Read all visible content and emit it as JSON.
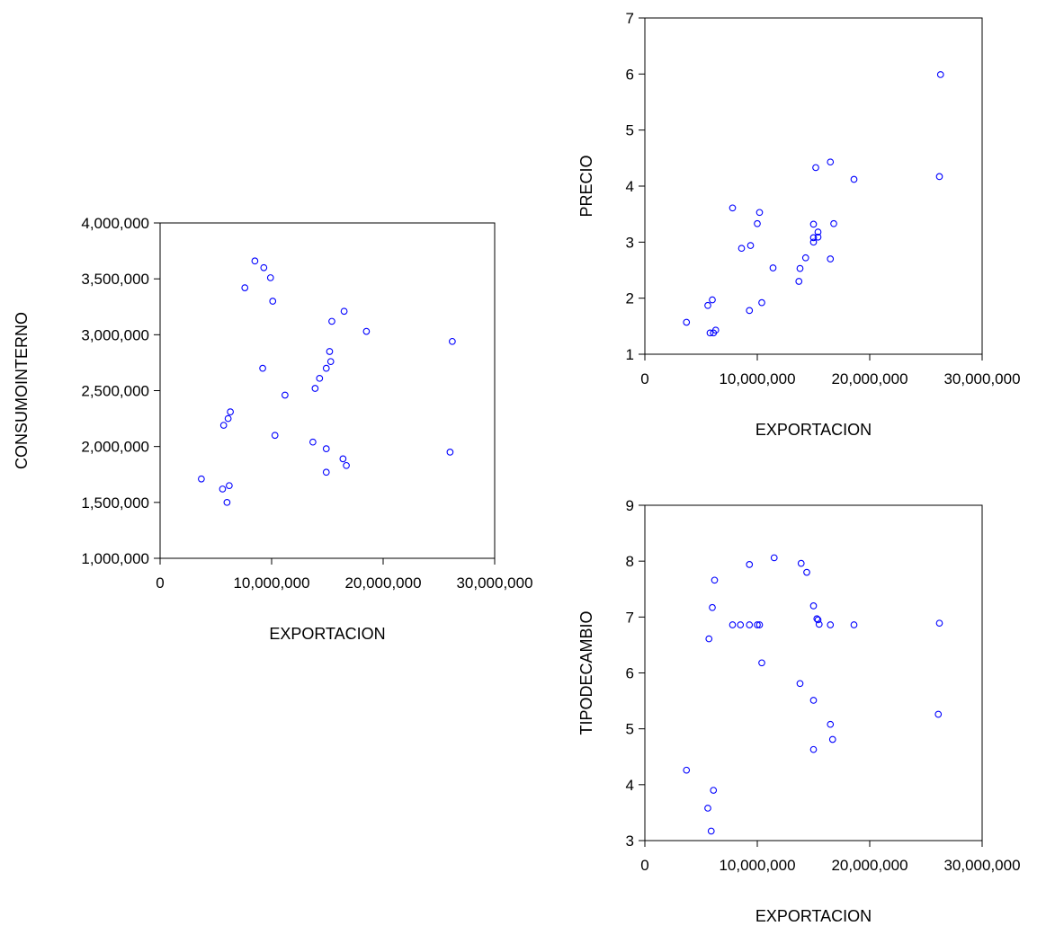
{
  "chart_data": [
    {
      "type": "scatter",
      "title": "",
      "xlabel": "EXPORTACION",
      "ylabel": "CONSUMOINTERNO",
      "xlim": [
        0,
        30000000
      ],
      "ylim": [
        1000000,
        4000000
      ],
      "x_ticks": [
        0,
        10000000,
        20000000,
        30000000
      ],
      "x_tick_labels": [
        "0",
        "10,000,000",
        "20,000,000",
        "30,000,000"
      ],
      "y_ticks": [
        1000000,
        1500000,
        2000000,
        2500000,
        3000000,
        3500000,
        4000000
      ],
      "y_tick_labels": [
        "1,000,000",
        "1,500,000",
        "2,000,000",
        "2,500,000",
        "3,000,000",
        "3,500,000",
        "4,000,000"
      ],
      "grid": false,
      "marker_color": "#0000ff",
      "points": [
        {
          "x": 3700000,
          "y": 1710000
        },
        {
          "x": 5600000,
          "y": 1620000
        },
        {
          "x": 6200000,
          "y": 1650000
        },
        {
          "x": 6000000,
          "y": 1500000
        },
        {
          "x": 5700000,
          "y": 2190000
        },
        {
          "x": 6100000,
          "y": 2250000
        },
        {
          "x": 6300000,
          "y": 2310000
        },
        {
          "x": 7600000,
          "y": 3420000
        },
        {
          "x": 8500000,
          "y": 3660000
        },
        {
          "x": 9300000,
          "y": 3600000
        },
        {
          "x": 9900000,
          "y": 3510000
        },
        {
          "x": 10100000,
          "y": 3300000
        },
        {
          "x": 9200000,
          "y": 2700000
        },
        {
          "x": 10300000,
          "y": 2100000
        },
        {
          "x": 11200000,
          "y": 2460000
        },
        {
          "x": 13700000,
          "y": 2040000
        },
        {
          "x": 13900000,
          "y": 2520000
        },
        {
          "x": 14300000,
          "y": 2610000
        },
        {
          "x": 14900000,
          "y": 2700000
        },
        {
          "x": 15200000,
          "y": 2850000
        },
        {
          "x": 15300000,
          "y": 2760000
        },
        {
          "x": 15400000,
          "y": 3120000
        },
        {
          "x": 16500000,
          "y": 3210000
        },
        {
          "x": 18500000,
          "y": 3030000
        },
        {
          "x": 14900000,
          "y": 1980000
        },
        {
          "x": 16400000,
          "y": 1890000
        },
        {
          "x": 16700000,
          "y": 1830000
        },
        {
          "x": 14900000,
          "y": 1770000
        },
        {
          "x": 26200000,
          "y": 2940000
        },
        {
          "x": 26000000,
          "y": 1950000
        }
      ]
    },
    {
      "type": "scatter",
      "title": "",
      "xlabel": "EXPORTACION",
      "ylabel": "PRECIO",
      "xlim": [
        0,
        30000000
      ],
      "ylim": [
        1,
        7
      ],
      "x_ticks": [
        0,
        10000000,
        20000000,
        30000000
      ],
      "x_tick_labels": [
        "0",
        "10,000,000",
        "20,000,000",
        "30,000,000"
      ],
      "y_ticks": [
        1,
        2,
        3,
        4,
        5,
        6,
        7
      ],
      "y_tick_labels": [
        "1",
        "2",
        "3",
        "4",
        "5",
        "6",
        "7"
      ],
      "grid": false,
      "marker_color": "#0000ff",
      "points": [
        {
          "x": 3700000,
          "y": 1.57
        },
        {
          "x": 5600000,
          "y": 1.87
        },
        {
          "x": 6000000,
          "y": 1.97
        },
        {
          "x": 5800000,
          "y": 1.38
        },
        {
          "x": 6100000,
          "y": 1.38
        },
        {
          "x": 6300000,
          "y": 1.43
        },
        {
          "x": 7800000,
          "y": 3.61
        },
        {
          "x": 8600000,
          "y": 2.89
        },
        {
          "x": 9400000,
          "y": 2.94
        },
        {
          "x": 9300000,
          "y": 1.78
        },
        {
          "x": 10000000,
          "y": 3.33
        },
        {
          "x": 10200000,
          "y": 3.53
        },
        {
          "x": 10400000,
          "y": 1.92
        },
        {
          "x": 11400000,
          "y": 2.54
        },
        {
          "x": 13700000,
          "y": 2.3
        },
        {
          "x": 13800000,
          "y": 2.53
        },
        {
          "x": 14300000,
          "y": 2.72
        },
        {
          "x": 15000000,
          "y": 3.0
        },
        {
          "x": 15000000,
          "y": 3.08
        },
        {
          "x": 15000000,
          "y": 3.32
        },
        {
          "x": 15400000,
          "y": 3.18
        },
        {
          "x": 15400000,
          "y": 3.09
        },
        {
          "x": 15200000,
          "y": 4.33
        },
        {
          "x": 16500000,
          "y": 4.43
        },
        {
          "x": 16500000,
          "y": 2.7
        },
        {
          "x": 16800000,
          "y": 3.33
        },
        {
          "x": 18600000,
          "y": 4.12
        },
        {
          "x": 26200000,
          "y": 4.17
        },
        {
          "x": 26300000,
          "y": 5.99
        }
      ]
    },
    {
      "type": "scatter",
      "title": "",
      "xlabel": "EXPORTACION",
      "ylabel": "TIPODECAMBIO",
      "xlim": [
        0,
        30000000
      ],
      "ylim": [
        3,
        9
      ],
      "x_ticks": [
        0,
        10000000,
        20000000,
        30000000
      ],
      "x_tick_labels": [
        "0",
        "10,000,000",
        "20,000,000",
        "30,000,000"
      ],
      "y_ticks": [
        3,
        4,
        5,
        6,
        7,
        8,
        9
      ],
      "y_tick_labels": [
        "3",
        "4",
        "5",
        "6",
        "7",
        "8",
        "9"
      ],
      "grid": false,
      "marker_color": "#0000ff",
      "points": [
        {
          "x": 3700000,
          "y": 4.26
        },
        {
          "x": 5600000,
          "y": 3.58
        },
        {
          "x": 5900000,
          "y": 3.17
        },
        {
          "x": 6100000,
          "y": 3.9
        },
        {
          "x": 5700000,
          "y": 6.61
        },
        {
          "x": 6000000,
          "y": 7.17
        },
        {
          "x": 6200000,
          "y": 7.66
        },
        {
          "x": 7800000,
          "y": 6.86
        },
        {
          "x": 8500000,
          "y": 6.86
        },
        {
          "x": 9300000,
          "y": 6.86
        },
        {
          "x": 9300000,
          "y": 7.94
        },
        {
          "x": 10000000,
          "y": 6.86
        },
        {
          "x": 10200000,
          "y": 6.86
        },
        {
          "x": 10400000,
          "y": 6.18
        },
        {
          "x": 11500000,
          "y": 8.06
        },
        {
          "x": 13800000,
          "y": 5.81
        },
        {
          "x": 13900000,
          "y": 7.96
        },
        {
          "x": 14400000,
          "y": 7.8
        },
        {
          "x": 15000000,
          "y": 7.2
        },
        {
          "x": 15000000,
          "y": 5.51
        },
        {
          "x": 15000000,
          "y": 4.63
        },
        {
          "x": 15300000,
          "y": 6.97
        },
        {
          "x": 15400000,
          "y": 6.95
        },
        {
          "x": 15500000,
          "y": 6.87
        },
        {
          "x": 16500000,
          "y": 6.86
        },
        {
          "x": 16500000,
          "y": 5.08
        },
        {
          "x": 16700000,
          "y": 4.81
        },
        {
          "x": 18600000,
          "y": 6.86
        },
        {
          "x": 26200000,
          "y": 6.89
        },
        {
          "x": 26100000,
          "y": 5.26
        }
      ]
    }
  ]
}
